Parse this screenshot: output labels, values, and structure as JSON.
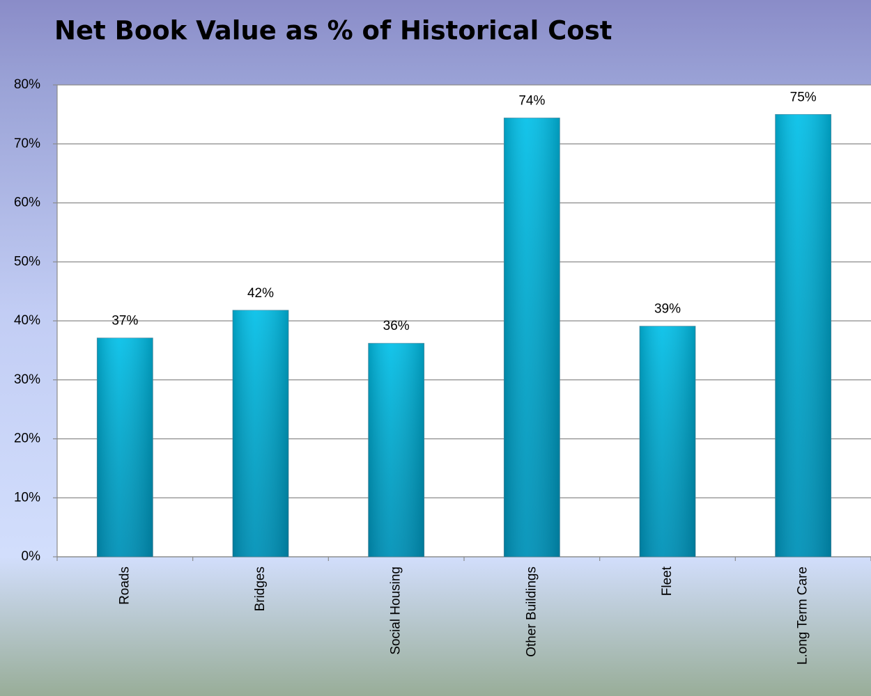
{
  "chart_data": {
    "type": "bar",
    "title": "Net Book Value as % of Historical Cost",
    "categories": [
      "Roads",
      "Bridges",
      "Social Housing",
      "Other Buildings",
      "Fleet",
      "L.ong Term Care"
    ],
    "values": [
      37.1,
      41.8,
      36.2,
      74.4,
      39.1,
      75.0
    ],
    "value_labels": [
      "37%",
      "42%",
      "36%",
      "74%",
      "39%",
      "75%"
    ],
    "color": "#00bfe8",
    "ylim": [
      0,
      80
    ],
    "yticks": [
      {
        "value": 0,
        "label": "0%"
      },
      {
        "value": 10,
        "label": "10%"
      },
      {
        "value": 20,
        "label": "20%"
      },
      {
        "value": 30,
        "label": "30%"
      },
      {
        "value": 40,
        "label": "40%"
      },
      {
        "value": 50,
        "label": "50%"
      },
      {
        "value": 60,
        "label": "60%"
      },
      {
        "value": 70,
        "label": "70%"
      },
      {
        "value": 80,
        "label": "80%"
      }
    ],
    "grid": true
  }
}
